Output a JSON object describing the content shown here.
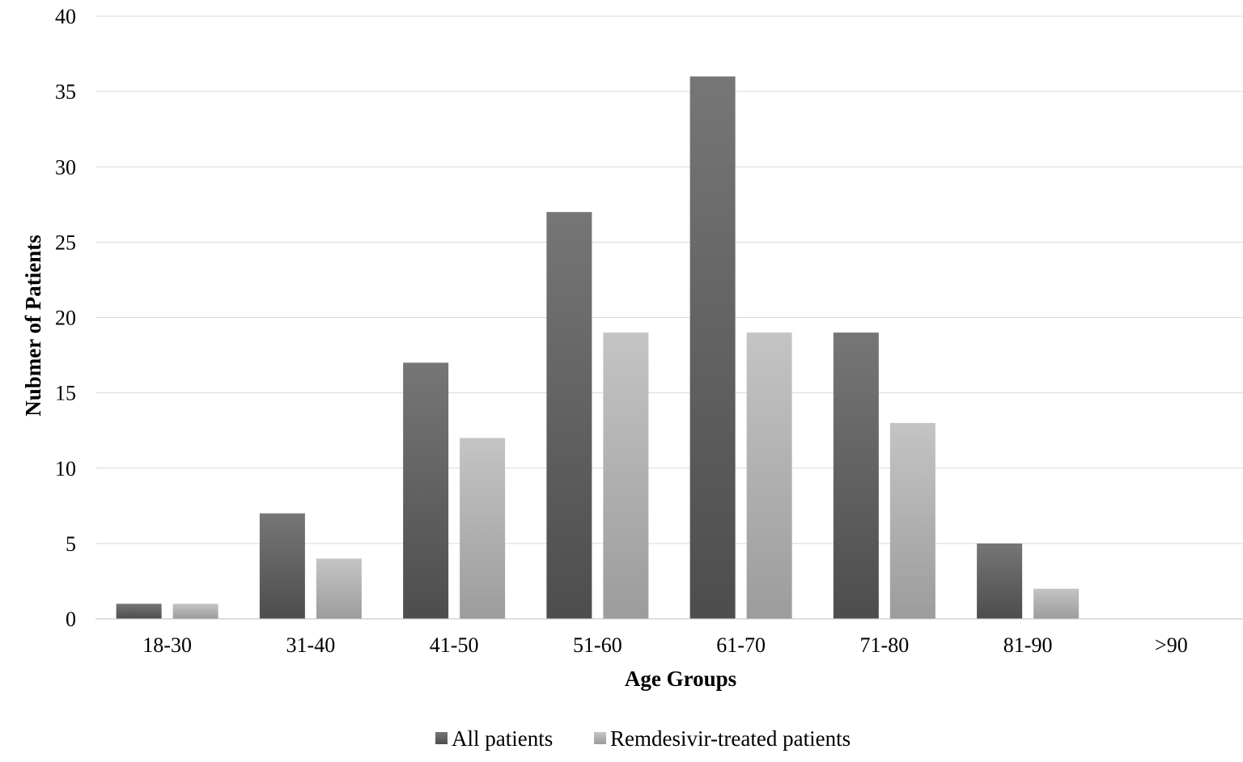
{
  "chart_data": {
    "type": "bar",
    "title": "",
    "xlabel": "Age Groups",
    "ylabel": "Nubmer of Patients",
    "categories": [
      "18-30",
      "31-40",
      "41-50",
      "51-60",
      "61-70",
      "71-80",
      "81-90",
      ">90"
    ],
    "ylim": [
      0,
      40
    ],
    "yticks": [
      "0",
      "5",
      "10",
      "15",
      "20",
      "25",
      "30",
      "35",
      "40"
    ],
    "grid": true,
    "legend_position": "bottom",
    "series": [
      {
        "name": "All patients",
        "values": [
          1,
          7,
          17,
          27,
          36,
          19,
          5,
          0
        ],
        "color_top": "#767676",
        "color_bottom": "#4d4d4d"
      },
      {
        "name": "Remdesivir-treated patients",
        "values": [
          1,
          4,
          12,
          19,
          19,
          13,
          2,
          0
        ],
        "color_top": "#c4c4c4",
        "color_bottom": "#9c9c9c"
      }
    ]
  }
}
